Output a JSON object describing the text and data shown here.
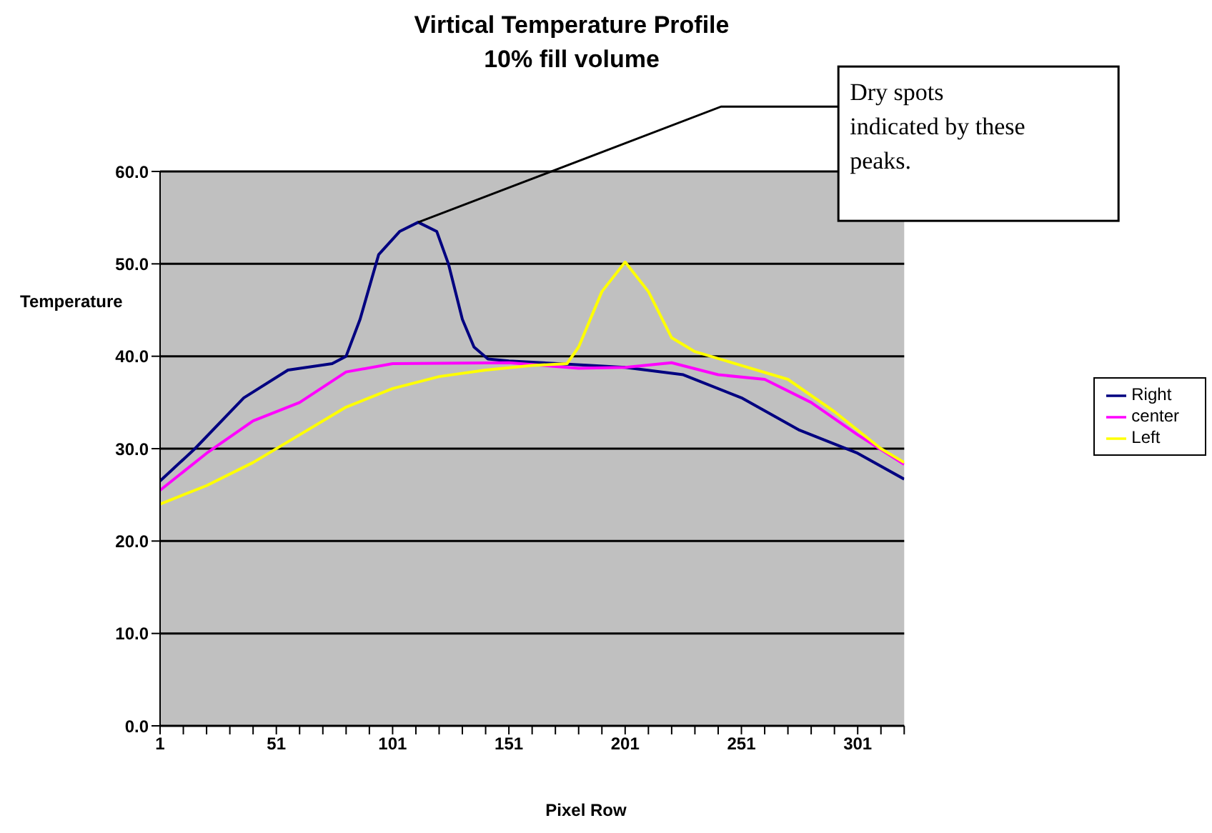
{
  "chart_data": {
    "type": "line",
    "title": "Virtical Temperature Profile",
    "subtitle": "10% fill volume",
    "xlabel": "Pixel Row",
    "ylabel": "Temperature",
    "annotations": [
      {
        "text": "Dry spots indicated by these peaks.",
        "x": 112,
        "y": 54.5
      }
    ],
    "xlim": [
      1,
      321
    ],
    "xticks": [
      1,
      {
        "value": 11,
        "label": null
      },
      {
        "value": 21,
        "label": null
      },
      {
        "value": 31,
        "label": null
      },
      {
        "value": 41,
        "label": null
      },
      51,
      {
        "value": 61,
        "label": null
      },
      {
        "value": 71,
        "label": null
      },
      {
        "value": 81,
        "label": null
      },
      {
        "value": 91,
        "label": null
      },
      101,
      {
        "value": 111,
        "label": null
      },
      {
        "value": 121,
        "label": null
      },
      {
        "value": 131,
        "label": null
      },
      {
        "value": 141,
        "label": null
      },
      151,
      {
        "value": 161,
        "label": null
      },
      {
        "value": 171,
        "label": null
      },
      {
        "value": 181,
        "label": null
      },
      {
        "value": 191,
        "label": null
      },
      201,
      {
        "value": 211,
        "label": null
      },
      {
        "value": 221,
        "label": null
      },
      {
        "value": 231,
        "label": null
      },
      {
        "value": 241,
        "label": null
      },
      251,
      {
        "value": 261,
        "label": null
      },
      {
        "value": 271,
        "label": null
      },
      {
        "value": 281,
        "label": null
      },
      {
        "value": 291,
        "label": null
      },
      301,
      {
        "value": 311,
        "label": null
      },
      {
        "value": 321,
        "label": null
      }
    ],
    "ylim": [
      0,
      60
    ],
    "yticks": [
      {
        "value": 0,
        "label": "0.0"
      },
      {
        "value": 10,
        "label": "10.0"
      },
      {
        "value": 20,
        "label": "20.0"
      },
      {
        "value": 30,
        "label": "30.0"
      },
      {
        "value": 40,
        "label": "40.0"
      },
      {
        "value": 50,
        "label": "50.0"
      },
      {
        "value": 60,
        "label": "60.0"
      }
    ],
    "grid": "y",
    "legend": "right",
    "marker": "none",
    "line_style": "solid",
    "series": [
      {
        "name": "Right",
        "color": "#000080",
        "x": [
          1,
          16,
          37,
          56,
          75,
          81,
          87,
          95,
          104,
          112,
          120,
          125,
          131,
          136,
          142,
          151,
          201,
          226,
          251,
          276,
          301,
          321
        ],
        "values": [
          26.5,
          30,
          35.5,
          38.5,
          39.2,
          40,
          44,
          51,
          53.5,
          54.5,
          53.5,
          50,
          44,
          41,
          39.7,
          39.5,
          38.8,
          38,
          35.5,
          32,
          29.5,
          26.7
        ]
      },
      {
        "name": "center",
        "color": "#ff00ff",
        "x": [
          1,
          21,
          41,
          61,
          81,
          101,
          151,
          181,
          201,
          221,
          241,
          261,
          281,
          301,
          321
        ],
        "values": [
          25.5,
          29.5,
          33,
          35,
          38.3,
          39.2,
          39.3,
          38.7,
          38.8,
          39.3,
          38,
          37.5,
          35,
          31.5,
          28.3
        ]
      },
      {
        "name": "Left",
        "color": "#ffff00",
        "x": [
          1,
          21,
          41,
          61,
          81,
          101,
          121,
          141,
          161,
          176,
          181,
          191,
          201,
          211,
          221,
          231,
          251,
          271,
          291,
          311,
          321
        ],
        "values": [
          24,
          26,
          28.5,
          31.5,
          34.5,
          36.5,
          37.8,
          38.5,
          39,
          39.2,
          41,
          47,
          50.2,
          47,
          42,
          40.5,
          39,
          37.5,
          34,
          30,
          28.5
        ]
      }
    ]
  }
}
